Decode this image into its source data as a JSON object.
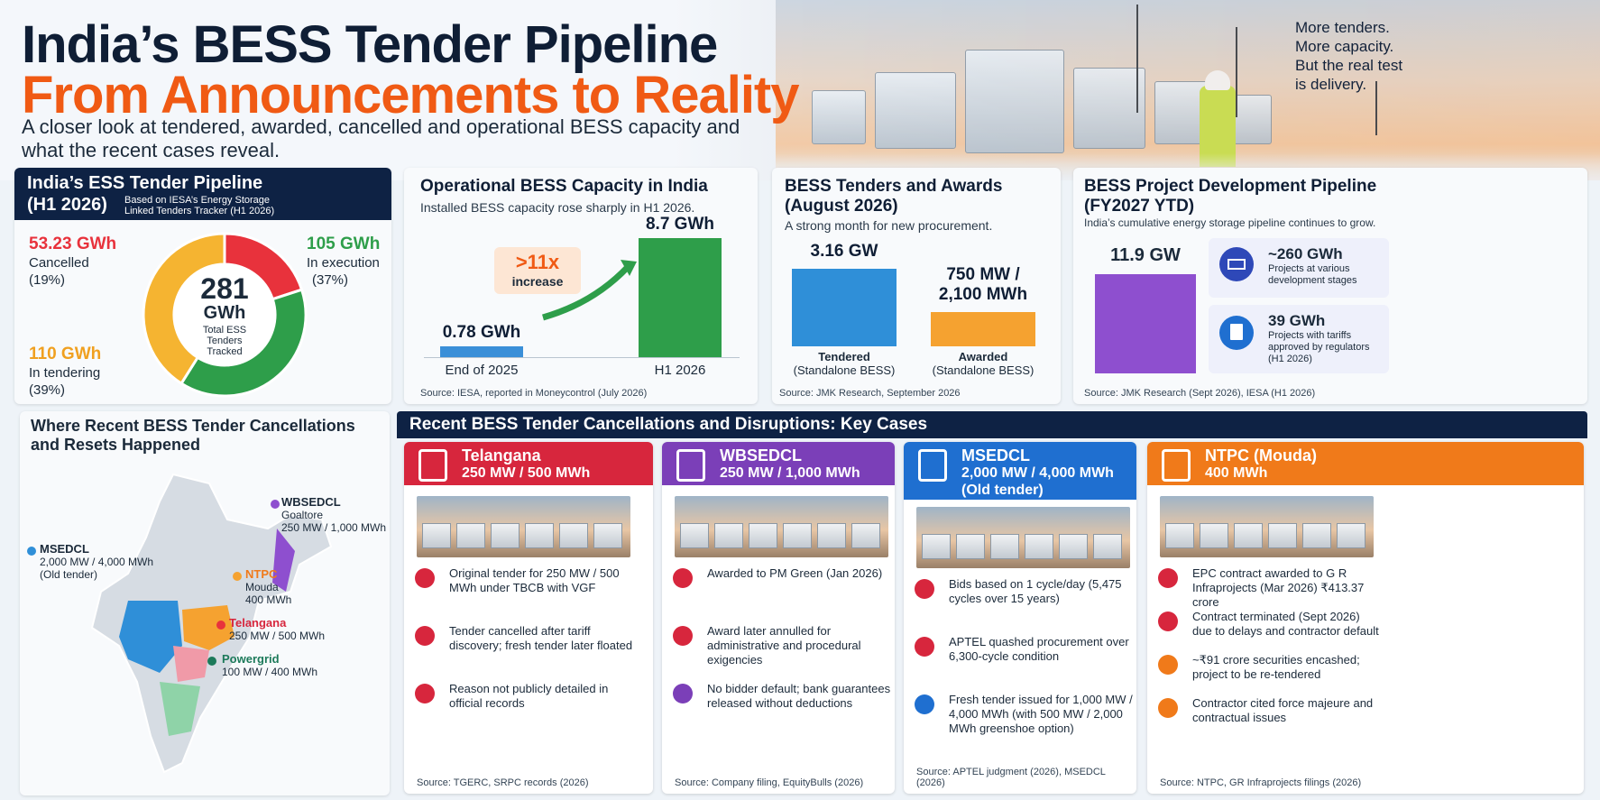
{
  "header": {
    "title_line1": "India’s BESS Tender Pipeline",
    "title_line2": "From Announcements to Reality",
    "subtitle": "A closer look at tendered, awarded, cancelled and operational BESS capacity and what the recent cases reveal.",
    "tagline": [
      "More tenders.",
      "More capacity.",
      "But the real test",
      "is delivery."
    ]
  },
  "colors": {
    "navy": "#0e2244",
    "orange": "#f05a14",
    "red": "#e8323c",
    "green": "#2e9e4a",
    "yellow": "#f5b431",
    "blue": "#2f8fd8",
    "awarded": "#f5a230",
    "purple": "#8e4fcf"
  },
  "pipeline": {
    "title": "India’s ESS Tender Pipeline",
    "title2": "(H1 2026)",
    "note": "Based on IESA’s Energy Storage Linked Tenders Tracker (H1 2026)",
    "center_value": "281",
    "center_unit": "GWh",
    "center_label": "Total ESS Tenders Tracked",
    "segments": [
      {
        "value": "53.23 GWh",
        "label": "Cancelled",
        "pct": "(19%)",
        "share": 19,
        "color": "#e8323c"
      },
      {
        "value": "105 GWh",
        "label": "In execution",
        "pct": "(37%)",
        "share": 37,
        "color": "#2e9e4a"
      },
      {
        "value": "110 GWh",
        "label": "In tendering",
        "pct": "(39%)",
        "share": 39,
        "color": "#f5b431"
      }
    ]
  },
  "operational": {
    "title": "Operational BESS Capacity in India",
    "sub": "Installed BESS capacity rose sharply in H1 2026.",
    "bars": [
      {
        "label": "End of 2025",
        "value_text": "0.78 GWh",
        "value": 0.78
      },
      {
        "label": "H1 2026",
        "value_text": "8.7 GWh",
        "value": 8.7
      }
    ],
    "badge_big": ">11x",
    "badge_small": "increase",
    "source": "Source: IESA, reported in Moneycontrol (July 2026)"
  },
  "awards": {
    "title": "BESS Tenders and Awards",
    "title2": "(August 2026)",
    "sub": "A strong month for new procurement.",
    "bars": [
      {
        "value_text": "3.16 GW",
        "label1": "Tendered",
        "label2": "(Standalone BESS)",
        "value": 3.16
      },
      {
        "value_text": "750 MW /",
        "value_text2": "2,100 MWh",
        "label1": "Awarded",
        "label2": "(Standalone BESS)",
        "value": 0.75
      }
    ],
    "source": "Source: JMK Research, September 2026"
  },
  "development": {
    "title": "BESS Project Development Pipeline",
    "title2": "(FY2027 YTD)",
    "sub": "India’s cumulative energy storage pipeline continues to grow.",
    "bar_value": "11.9 GW",
    "items": [
      {
        "value": "~260 GWh",
        "label": "Projects at various development stages",
        "icon": "solar-panel-icon"
      },
      {
        "value": "39 GWh",
        "label": "Projects with tariffs approved by regulators (H1 2026)",
        "icon": "document-icon"
      }
    ],
    "source": "Source: JMK Research (Sept 2026), IESA (H1 2026)"
  },
  "map": {
    "title": "Where Recent BESS Tender Cancellations and Resets Happened",
    "markers": [
      {
        "name": "WBSEDCL",
        "line1": "Goaltore",
        "line2": "250 MW / 1,000 MWh",
        "color": "#8e4fcf"
      },
      {
        "name": "MSEDCL",
        "line1": "2,000 MW / 4,000 MWh",
        "line2": "(Old tender)",
        "color": "#2f8fd8"
      },
      {
        "name": "NTPC",
        "line1": "Mouda",
        "line2": "400 MWh",
        "color": "#f5a230"
      },
      {
        "name": "Telangana",
        "line1": "250 MW / 500 MWh",
        "line2": "",
        "color": "#e8323c"
      },
      {
        "name": "Powergrid",
        "line1": "100 MW / 400 MWh",
        "line2": "",
        "color": "#1c7a5a"
      }
    ]
  },
  "cases": {
    "title": "Recent BESS Tender Cancellations and Disruptions: Key Cases",
    "items": [
      {
        "name": "Telangana",
        "capacity": "250 MW / 500 MWh",
        "capacity2": "",
        "color": "#d7263d",
        "rows": [
          {
            "icon": "document-icon",
            "text": "Original tender for 250 MW / 500 MWh under TBCB with VGF"
          },
          {
            "icon": "cancel-icon",
            "text": "Tender cancelled after tariff discovery; fresh tender later floated"
          },
          {
            "icon": "search-icon",
            "text": "Reason not publicly detailed in official records"
          }
        ],
        "source": "Source: TGERC, SRPC records (2026)"
      },
      {
        "name": "WBSEDCL",
        "capacity": "250 MW / 1,000 MWh",
        "capacity2": "",
        "color": "#7b3fb8",
        "rows": [
          {
            "icon": "document-icon",
            "text": "Awarded to PM Green (Jan 2026)"
          },
          {
            "icon": "cancel-icon",
            "text": "Award later annulled for administrative and procedural exigencies"
          },
          {
            "icon": "people-icon",
            "text": "No bidder default; bank guarantees released without deductions"
          }
        ],
        "source": "Source: Company filing, EquityBulls (2026)"
      },
      {
        "name": "MSEDCL",
        "capacity": "2,000 MW / 4,000 MWh",
        "capacity2": "(Old tender)",
        "color": "#1f6fd0",
        "rows": [
          {
            "icon": "document-icon",
            "text": "Bids based on 1 cycle/day (5,475 cycles over 15 years)"
          },
          {
            "icon": "cancel-icon",
            "text": "APTEL quashed procurement over 6,300-cycle condition"
          },
          {
            "icon": "refresh-icon",
            "text": "Fresh tender issued for 1,000 MW / 4,000 MWh (with 500 MW / 2,000 MWh greenshoe option)"
          }
        ],
        "source": "Source: APTEL judgment (2026), MSEDCL (2026)"
      },
      {
        "name": "NTPC (Mouda)",
        "capacity": "400 MWh",
        "capacity2": "",
        "color": "#f07a1a",
        "rows": [
          {
            "icon": "document-icon",
            "text": "EPC contract awarded to G R Infraprojects (Mar 2026) ₹413.37 crore"
          },
          {
            "icon": "cancel-icon",
            "text": "Contract terminated (Sept 2026) due to delays and contractor default"
          },
          {
            "icon": "gear-icon",
            "text": "~₹91 crore securities encashed; project to be re-tendered"
          },
          {
            "icon": "scales-icon",
            "text": "Contractor cited force majeure and contractual issues"
          }
        ],
        "source": "Source: NTPC, GR Infraprojects filings (2026)"
      }
    ]
  }
}
